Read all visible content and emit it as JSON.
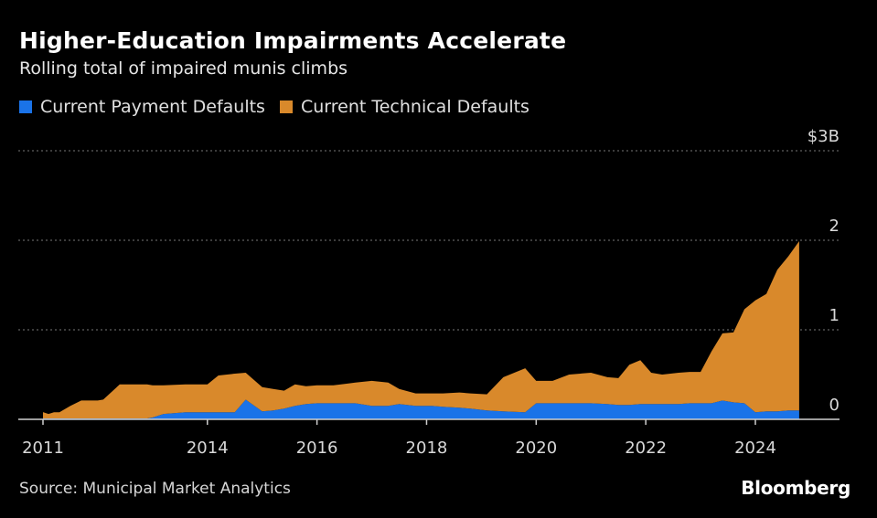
{
  "header": {
    "title": "Higher-Education Impairments Accelerate",
    "subtitle": "Rolling total of impaired munis climbs"
  },
  "legend": [
    {
      "label": "Current Payment Defaults",
      "color": "#1a73e8"
    },
    {
      "label": "Current Technical Defaults",
      "color": "#d9892b"
    }
  ],
  "footer": {
    "source": "Source: Municipal Market Analytics",
    "brand": "Bloomberg"
  },
  "chart_data": {
    "type": "area",
    "stacked": true,
    "title": "Higher-Education Impairments Accelerate",
    "subtitle": "Rolling total of impaired munis climbs",
    "xlabel": "",
    "ylabel": "",
    "xlim": [
      2011,
      2025.5
    ],
    "ylim": [
      0,
      3
    ],
    "grid": true,
    "legend_position": "top-left",
    "x_ticks": [
      2011,
      2014,
      2016,
      2018,
      2020,
      2022,
      2024
    ],
    "x_tick_labels": [
      "2011",
      "2014",
      "2016",
      "2018",
      "2020",
      "2022",
      "2024"
    ],
    "y_ticks": [
      0,
      1,
      2,
      3
    ],
    "y_tick_labels": [
      "0",
      "1",
      "2",
      "$3B"
    ],
    "x": [
      2011.0,
      2011.1,
      2011.2,
      2011.3,
      2011.5,
      2011.7,
      2011.8,
      2012.0,
      2012.1,
      2012.4,
      2012.6,
      2012.9,
      2013.0,
      2013.2,
      2013.6,
      2014.0,
      2014.2,
      2014.5,
      2014.7,
      2015.0,
      2015.2,
      2015.4,
      2015.6,
      2015.8,
      2016.0,
      2016.3,
      2016.7,
      2017.0,
      2017.3,
      2017.5,
      2017.8,
      2018.1,
      2018.3,
      2018.6,
      2018.8,
      2019.1,
      2019.4,
      2019.8,
      2020.0,
      2020.3,
      2020.6,
      2021.0,
      2021.3,
      2021.5,
      2021.7,
      2021.9,
      2022.1,
      2022.3,
      2022.6,
      2022.8,
      2023.0,
      2023.2,
      2023.4,
      2023.6,
      2023.8,
      2024.0,
      2024.2,
      2024.4,
      2024.6,
      2024.8
    ],
    "series": [
      {
        "name": "Current Payment Defaults",
        "color": "#1a73e8",
        "values": [
          0.01,
          0.01,
          0.01,
          0.01,
          0.01,
          0.01,
          0.01,
          0.01,
          0.01,
          0.01,
          0.01,
          0.01,
          0.02,
          0.06,
          0.08,
          0.08,
          0.08,
          0.08,
          0.22,
          0.09,
          0.1,
          0.12,
          0.15,
          0.17,
          0.18,
          0.18,
          0.18,
          0.15,
          0.15,
          0.17,
          0.15,
          0.15,
          0.14,
          0.13,
          0.12,
          0.1,
          0.09,
          0.08,
          0.18,
          0.18,
          0.18,
          0.18,
          0.17,
          0.16,
          0.16,
          0.17,
          0.17,
          0.17,
          0.17,
          0.18,
          0.18,
          0.18,
          0.21,
          0.19,
          0.18,
          0.08,
          0.09,
          0.09,
          0.1,
          0.1
        ]
      },
      {
        "name": "Current Technical Defaults",
        "color": "#d9892b",
        "values": [
          0.07,
          0.05,
          0.07,
          0.07,
          0.14,
          0.2,
          0.2,
          0.2,
          0.21,
          0.38,
          0.38,
          0.38,
          0.36,
          0.32,
          0.31,
          0.31,
          0.41,
          0.43,
          0.3,
          0.27,
          0.24,
          0.2,
          0.24,
          0.2,
          0.2,
          0.2,
          0.23,
          0.28,
          0.26,
          0.17,
          0.14,
          0.14,
          0.15,
          0.17,
          0.17,
          0.18,
          0.38,
          0.49,
          0.25,
          0.25,
          0.32,
          0.34,
          0.3,
          0.3,
          0.45,
          0.49,
          0.35,
          0.33,
          0.35,
          0.35,
          0.35,
          0.58,
          0.75,
          0.78,
          1.05,
          1.25,
          1.31,
          1.58,
          1.72,
          1.89
        ]
      }
    ]
  }
}
